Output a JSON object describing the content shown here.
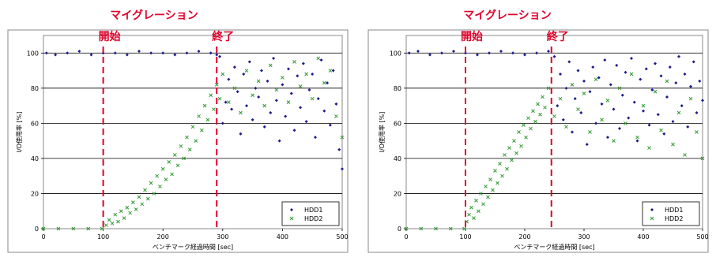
{
  "chart_data": [
    {
      "type": "scatter",
      "title": "マイグレーション",
      "xlabel": "ベンチマーク経過時間 [sec]",
      "ylabel": "I/O使用率 [%]",
      "xlim": [
        0,
        500
      ],
      "ylim": [
        0,
        110
      ],
      "xticks": [
        0,
        100,
        200,
        300,
        400,
        500
      ],
      "yticks": [
        0,
        20,
        40,
        60,
        80,
        100
      ],
      "x_tick_labels": [
        "0",
        "100",
        "200",
        "300",
        "400",
        "500"
      ],
      "y_tick_labels": [
        "0",
        "20",
        "40",
        "60",
        "80",
        "100"
      ],
      "grid": "horizontal",
      "legend_position": "bottom-right",
      "markers": [
        {
          "label": "開始",
          "x": 100
        },
        {
          "label": "終了",
          "x": 290
        }
      ],
      "series": [
        {
          "name": "HDD1",
          "marker": "diamond",
          "color": "#1a1a8c",
          "points": [
            [
              5,
              100
            ],
            [
              20,
              99
            ],
            [
              40,
              100
            ],
            [
              60,
              101
            ],
            [
              80,
              99
            ],
            [
              100,
              100
            ],
            [
              120,
              100
            ],
            [
              140,
              99
            ],
            [
              160,
              101
            ],
            [
              180,
              100
            ],
            [
              200,
              100
            ],
            [
              220,
              99
            ],
            [
              240,
              100
            ],
            [
              260,
              101
            ],
            [
              280,
              100
            ],
            [
              290,
              99
            ],
            [
              295,
              98
            ],
            [
              300,
              60
            ],
            [
              305,
              72
            ],
            [
              310,
              85
            ],
            [
              315,
              68
            ],
            [
              320,
              92
            ],
            [
              325,
              78
            ],
            [
              330,
              54
            ],
            [
              335,
              88
            ],
            [
              340,
              70
            ],
            [
              345,
              95
            ],
            [
              350,
              62
            ],
            [
              355,
              80
            ],
            [
              360,
              75
            ],
            [
              365,
              90
            ],
            [
              370,
              58
            ],
            [
              375,
              84
            ],
            [
              380,
              66
            ],
            [
              385,
              97
            ],
            [
              390,
              73
            ],
            [
              395,
              50
            ],
            [
              400,
              82
            ],
            [
              405,
              64
            ],
            [
              410,
              91
            ],
            [
              415,
              77
            ],
            [
              420,
              56
            ],
            [
              425,
              87
            ],
            [
              430,
              69
            ],
            [
              435,
              94
            ],
            [
              440,
              61
            ],
            [
              445,
              79
            ],
            [
              450,
              88
            ],
            [
              455,
              52
            ],
            [
              460,
              74
            ],
            [
              465,
              96
            ],
            [
              470,
              67
            ],
            [
              475,
              83
            ],
            [
              480,
              59
            ],
            [
              485,
              90
            ],
            [
              490,
              71
            ],
            [
              495,
              45
            ],
            [
              500,
              34
            ]
          ]
        },
        {
          "name": "HDD2",
          "marker": "x",
          "color": "#2f9a2f",
          "points": [
            [
              0,
              0
            ],
            [
              25,
              0
            ],
            [
              50,
              0
            ],
            [
              75,
              0
            ],
            [
              98,
              0
            ],
            [
              105,
              2
            ],
            [
              110,
              5
            ],
            [
              115,
              3
            ],
            [
              120,
              8
            ],
            [
              125,
              4
            ],
            [
              130,
              10
            ],
            [
              135,
              6
            ],
            [
              140,
              12
            ],
            [
              145,
              9
            ],
            [
              150,
              15
            ],
            [
              155,
              11
            ],
            [
              160,
              18
            ],
            [
              165,
              14
            ],
            [
              170,
              22
            ],
            [
              175,
              17
            ],
            [
              180,
              26
            ],
            [
              185,
              20
            ],
            [
              190,
              30
            ],
            [
              195,
              24
            ],
            [
              200,
              34
            ],
            [
              205,
              28
            ],
            [
              210,
              38
            ],
            [
              215,
              31
            ],
            [
              220,
              42
            ],
            [
              225,
              36
            ],
            [
              230,
              47
            ],
            [
              235,
              40
            ],
            [
              240,
              52
            ],
            [
              245,
              45
            ],
            [
              250,
              58
            ],
            [
              255,
              50
            ],
            [
              260,
              64
            ],
            [
              265,
              56
            ],
            [
              270,
              70
            ],
            [
              275,
              62
            ],
            [
              280,
              76
            ],
            [
              285,
              68
            ],
            [
              290,
              82
            ],
            [
              295,
              74
            ],
            [
              300,
              88
            ],
            [
              310,
              72
            ],
            [
              320,
              80
            ],
            [
              330,
              66
            ],
            [
              340,
              90
            ],
            [
              350,
              76
            ],
            [
              360,
              84
            ],
            [
              370,
              70
            ],
            [
              380,
              93
            ],
            [
              390,
              79
            ],
            [
              400,
              86
            ],
            [
              410,
              72
            ],
            [
              420,
              95
            ],
            [
              430,
              81
            ],
            [
              440,
              88
            ],
            [
              450,
              74
            ],
            [
              460,
              97
            ],
            [
              470,
              83
            ],
            [
              480,
              90
            ],
            [
              490,
              64
            ],
            [
              500,
              52
            ]
          ]
        }
      ]
    },
    {
      "type": "scatter",
      "title": "マイグレーション",
      "xlabel": "ベンチマーク経過時間 [sec]",
      "ylabel": "I/O使用率 [%]",
      "xlim": [
        0,
        500
      ],
      "ylim": [
        0,
        110
      ],
      "xticks": [
        0,
        100,
        200,
        300,
        400,
        500
      ],
      "yticks": [
        0,
        20,
        40,
        60,
        80,
        100
      ],
      "x_tick_labels": [
        "0",
        "100",
        "200",
        "300",
        "400",
        "500"
      ],
      "y_tick_labels": [
        "0",
        "20",
        "40",
        "60",
        "80",
        "100"
      ],
      "grid": "horizontal",
      "legend_position": "bottom-right",
      "markers": [
        {
          "label": "開始",
          "x": 100
        },
        {
          "label": "終了",
          "x": 245
        }
      ],
      "series": [
        {
          "name": "HDD1",
          "marker": "diamond",
          "color": "#1a1a8c",
          "points": [
            [
              5,
              100
            ],
            [
              20,
              101
            ],
            [
              40,
              99
            ],
            [
              60,
              100
            ],
            [
              80,
              101
            ],
            [
              100,
              100
            ],
            [
              120,
              99
            ],
            [
              140,
              100
            ],
            [
              160,
              101
            ],
            [
              180,
              100
            ],
            [
              200,
              99
            ],
            [
              220,
              100
            ],
            [
              240,
              101
            ],
            [
              250,
              98
            ],
            [
              255,
              70
            ],
            [
              260,
              88
            ],
            [
              265,
              62
            ],
            [
              270,
              80
            ],
            [
              275,
              95
            ],
            [
              280,
              55
            ],
            [
              285,
              74
            ],
            [
              290,
              90
            ],
            [
              295,
              66
            ],
            [
              300,
              84
            ],
            [
              305,
              48
            ],
            [
              310,
              78
            ],
            [
              315,
              92
            ],
            [
              320,
              60
            ],
            [
              325,
              86
            ],
            [
              330,
              71
            ],
            [
              335,
              96
            ],
            [
              340,
              52
            ],
            [
              345,
              82
            ],
            [
              350,
              68
            ],
            [
              355,
              93
            ],
            [
              360,
              57
            ],
            [
              365,
              76
            ],
            [
              370,
              89
            ],
            [
              375,
              63
            ],
            [
              380,
              97
            ],
            [
              385,
              72
            ],
            [
              390,
              50
            ],
            [
              395,
              85
            ],
            [
              400,
              67
            ],
            [
              405,
              91
            ],
            [
              410,
              59
            ],
            [
              415,
              79
            ],
            [
              420,
              94
            ],
            [
              425,
              65
            ],
            [
              430,
              87
            ],
            [
              435,
              54
            ],
            [
              440,
              75
            ],
            [
              445,
              92
            ],
            [
              450,
              61
            ],
            [
              455,
              83
            ],
            [
              460,
              98
            ],
            [
              465,
              70
            ],
            [
              470,
              88
            ],
            [
              475,
              58
            ],
            [
              480,
              81
            ],
            [
              485,
              95
            ],
            [
              490,
              66
            ],
            [
              495,
              84
            ],
            [
              500,
              73
            ]
          ]
        },
        {
          "name": "HDD2",
          "marker": "x",
          "color": "#2f9a2f",
          "points": [
            [
              0,
              0
            ],
            [
              25,
              0
            ],
            [
              50,
              0
            ],
            [
              75,
              0
            ],
            [
              98,
              0
            ],
            [
              102,
              4
            ],
            [
              106,
              8
            ],
            [
              110,
              12
            ],
            [
              114,
              6
            ],
            [
              118,
              16
            ],
            [
              122,
              10
            ],
            [
              126,
              20
            ],
            [
              130,
              14
            ],
            [
              134,
              24
            ],
            [
              138,
              18
            ],
            [
              142,
              28
            ],
            [
              146,
              22
            ],
            [
              150,
              33
            ],
            [
              154,
              26
            ],
            [
              158,
              37
            ],
            [
              162,
              30
            ],
            [
              166,
              42
            ],
            [
              170,
              34
            ],
            [
              174,
              46
            ],
            [
              178,
              39
            ],
            [
              182,
              50
            ],
            [
              186,
              43
            ],
            [
              190,
              55
            ],
            [
              194,
              47
            ],
            [
              198,
              59
            ],
            [
              202,
              52
            ],
            [
              206,
              63
            ],
            [
              210,
              57
            ],
            [
              214,
              67
            ],
            [
              218,
              61
            ],
            [
              222,
              71
            ],
            [
              226,
              65
            ],
            [
              230,
              75
            ],
            [
              234,
              69
            ],
            [
              240,
              80
            ],
            [
              250,
              64
            ],
            [
              260,
              74
            ],
            [
              270,
              58
            ],
            [
              280,
              82
            ],
            [
              290,
              68
            ],
            [
              300,
              77
            ],
            [
              310,
              55
            ],
            [
              320,
              85
            ],
            [
              330,
              62
            ],
            [
              340,
              73
            ],
            [
              350,
              50
            ],
            [
              360,
              80
            ],
            [
              370,
              60
            ],
            [
              380,
              88
            ],
            [
              390,
              52
            ],
            [
              400,
              70
            ],
            [
              410,
              46
            ],
            [
              420,
              78
            ],
            [
              430,
              56
            ],
            [
              440,
              84
            ],
            [
              450,
              48
            ],
            [
              460,
              66
            ],
            [
              470,
              42
            ],
            [
              480,
              74
            ],
            [
              490,
              55
            ],
            [
              500,
              40
            ]
          ]
        }
      ]
    }
  ]
}
